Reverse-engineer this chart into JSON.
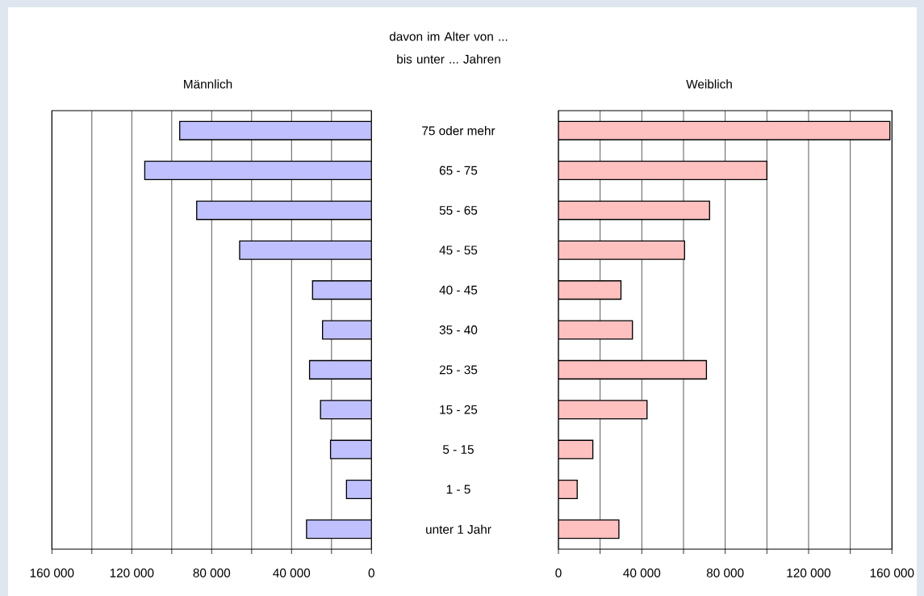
{
  "chart_data": [
    {
      "type": "bar",
      "orientation": "horizontal",
      "title": "Männlich",
      "ylabel": "davon im Alter von ... bis unter ... Jahren",
      "categories": [
        "75 oder mehr",
        "65 - 75",
        "55 - 65",
        "45 - 55",
        "40 - 45",
        "35 - 40",
        "25 - 35",
        "15 - 25",
        "5 - 15",
        "1 - 5",
        "unter 1 Jahr"
      ],
      "values": [
        96000,
        113500,
        87500,
        66000,
        29500,
        24500,
        31000,
        25500,
        20500,
        12500,
        32500
      ],
      "color": "#c0c0ff",
      "xlim": [
        160000,
        0
      ],
      "xticks": [
        0,
        {
          "value": 20000,
          "label": null
        },
        {
          "value": 40000,
          "label": "40 000"
        },
        {
          "value": 60000,
          "label": null
        },
        {
          "value": 80000,
          "label": "80 000"
        },
        {
          "value": 100000,
          "label": null
        },
        {
          "value": 120000,
          "label": "120 000"
        },
        {
          "value": 140000,
          "label": null
        },
        {
          "value": 160000,
          "label": "160 000"
        }
      ],
      "grid": "x"
    },
    {
      "type": "bar",
      "orientation": "horizontal",
      "title": "Weiblich",
      "categories": [
        null,
        null,
        null,
        null,
        null,
        null,
        null,
        null,
        null,
        null,
        null
      ],
      "values": [
        159000,
        100000,
        72500,
        60500,
        30000,
        35500,
        71000,
        42500,
        16500,
        9000,
        29000
      ],
      "color": "#ffc0c0",
      "xlim": [
        0,
        160000
      ],
      "xticks": [
        0,
        {
          "value": 20000,
          "label": null
        },
        {
          "value": 40000,
          "label": "40 000"
        },
        {
          "value": 60000,
          "label": null
        },
        {
          "value": 80000,
          "label": "80 000"
        },
        {
          "value": 100000,
          "label": null
        },
        {
          "value": 120000,
          "label": "120 000"
        },
        {
          "value": 140000,
          "label": null
        },
        {
          "value": 160000,
          "label": "160 000"
        }
      ],
      "grid": "x"
    }
  ]
}
